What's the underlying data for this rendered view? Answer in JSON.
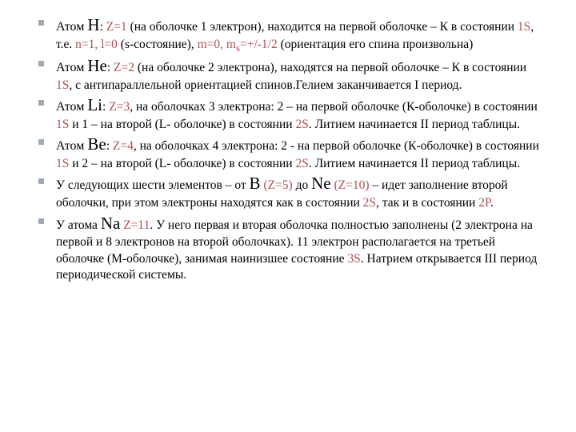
{
  "colors": {
    "text": "#000000",
    "accent": "#b05050",
    "bullet": "#9fa8b5",
    "background": "#ffffff"
  },
  "typography": {
    "body_fontsize": 15.5,
    "element_fontsize": 21,
    "line_height": 1.32,
    "font_family": "Times New Roman"
  },
  "items": [
    {
      "atom_label": "Атом ",
      "element": "H",
      "colon": ": ",
      "z": "Z=1",
      "rest1": " (на оболочке 1 электрон), находится на первой оболочке – К в состоянии ",
      "state1": "1S",
      "rest2": ", т.е. ",
      "state2": "n=1, l=0",
      "rest3": " (s-состояние), ",
      "state3": "m=0, m",
      "sub_s": "s",
      "state3b": "=+/-1/2",
      "rest4": " (ориентация его спина произвольна)"
    },
    {
      "atom_label": "Атом ",
      "element": "He",
      "colon": ": ",
      "z": "Z=2",
      "rest1": " (на оболочке 2 электрона), находятся на первой оболочке – К в состоянии ",
      "state1": "1S",
      "rest2": ", с антипараллельной ориентацией спинов.Гелием заканчивается I период."
    },
    {
      "atom_label": "Атом ",
      "element": "Li",
      "colon": ": ",
      "z": "Z=3",
      "rest1": ", на оболочках 3 электрона: 2 – на первой оболочке (К-оболочке) в состоянии ",
      "state1": "1S",
      "rest2": " и 1 – на второй (L- оболочке) в состоянии ",
      "state2": "2S",
      "rest3": ". Литием начинается II период таблицы."
    },
    {
      "atom_label": " Атом ",
      "element": "Be",
      "colon": ": ",
      "z": "Z=4",
      "rest1": ", на оболочках 4 электрона: 2 - на первой оболочке (К-оболочке) в состоянии ",
      "state1": "1S",
      "rest2": " и 2 – на второй (L- оболочке) в состоянии ",
      "state2": "2S",
      "rest3": ". Литием начинается II период таблицы."
    },
    {
      "rest1": "У следующих шести элементов – от ",
      "el_b": "B",
      "z_b": " (Z=5)",
      "rest2": " до ",
      "el_ne": "Ne",
      "z_ne": " (Z=10)",
      "rest3": " – идет заполнение второй оболочки, при этом электроны находятся как  в состоянии ",
      "state1": "2S",
      "rest4": ", так и в состоянии ",
      "state2": "2P",
      "rest5": "."
    },
    {
      "rest1": "  У атома ",
      "el_na": "Na",
      "z_na": " Z=11",
      "rest2": ". У него первая и вторая оболочка полностью заполнены (2 электрона на первой и 8 электронов на второй оболочках). 11 электрон располагается на третьей оболочке (М-оболочке), занимая наинизшее состояние ",
      "state1": "3S",
      "rest3": ". Натрием открывается III период периодической системы."
    }
  ]
}
